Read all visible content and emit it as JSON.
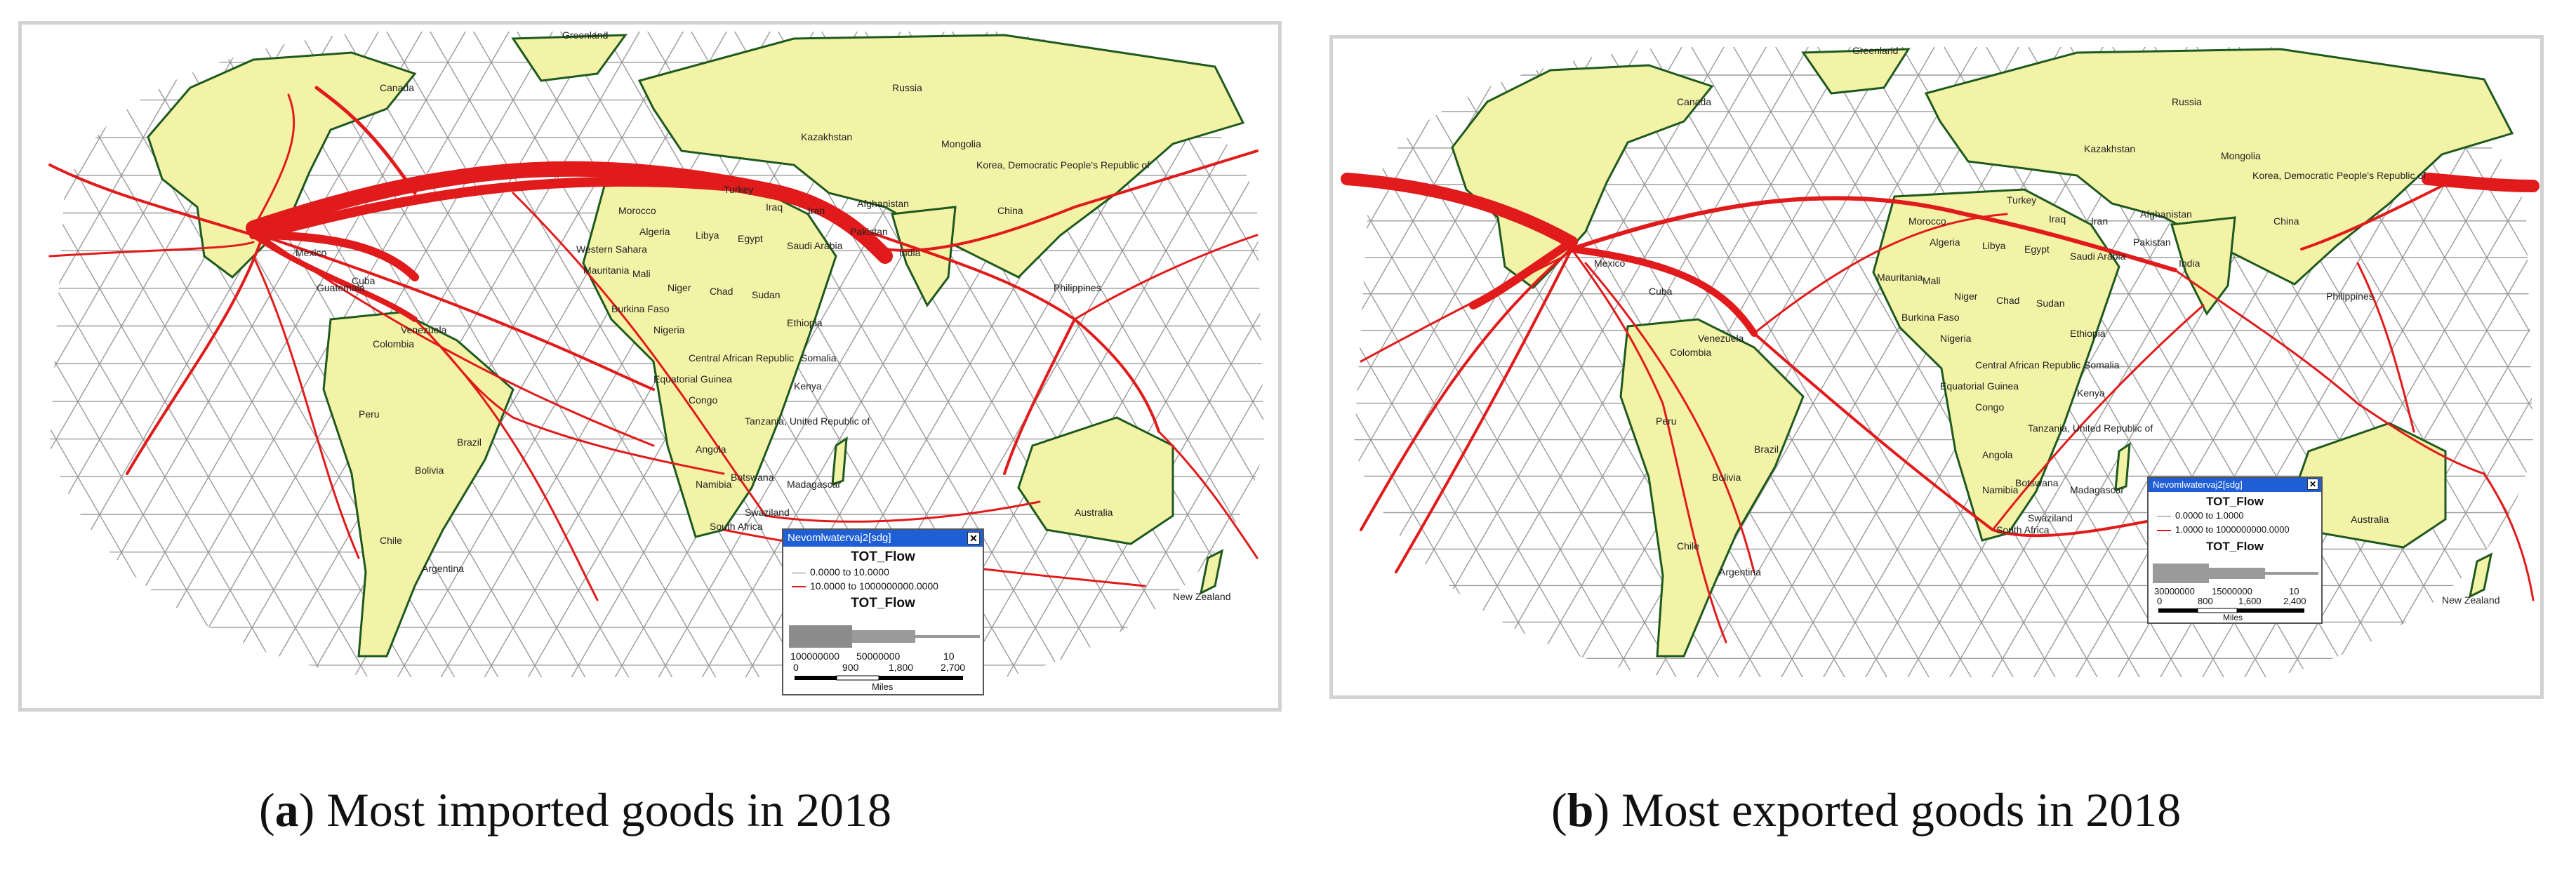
{
  "panels": [
    {
      "id": "a",
      "caption_letter": "a",
      "caption_text": ") Most imported goods in 2018",
      "legend": {
        "window_title": "Nevomlwatervaj2[sdg]",
        "close_symbol": "✕",
        "field": "TOT_Flow",
        "classes": [
          "0.0000 to 10.0000",
          "10.0000 to 1000000000.0000"
        ],
        "width_field": "TOT_Flow",
        "width_values": [
          "100000000",
          "50000000",
          "10"
        ],
        "scale_ticks": [
          "0",
          "900",
          "1,800",
          "2,700"
        ],
        "scale_unit": "Miles"
      },
      "labels": [
        "Greenland",
        "Canada",
        "Russia",
        "Kazakhstan",
        "Mongolia",
        "Korea, Democratic People's Republic of",
        "Afghanistan",
        "Iran",
        "Iraq",
        "Turkey",
        "Morocco",
        "Algeria",
        "Libya",
        "Egypt",
        "Saudi Arabia",
        "Western Sahara",
        "Mauritania",
        "Mali",
        "Niger",
        "Chad",
        "Sudan",
        "Burkina Faso",
        "Nigeria",
        "Ethiopia",
        "Central African Republic",
        "Equatorial Guinea",
        "Congo",
        "Somalia",
        "Tanzania, United Republic of",
        "Kenya",
        "Angola",
        "Namibia",
        "Botswana",
        "Madagascar",
        "South Africa",
        "Swaziland",
        "India",
        "China",
        "Pakistan",
        "Philippines",
        "Australia",
        "New Zealand",
        "Mexico",
        "Colombia",
        "Venezuela",
        "Brazil",
        "Bolivia",
        "Chile",
        "Argentina",
        "Peru",
        "Cuba",
        "Guatemala"
      ]
    },
    {
      "id": "b",
      "caption_letter": "b",
      "caption_text": ") Most exported goods in 2018",
      "legend": {
        "window_title": "Nevomlwatervaj2[sdg]",
        "close_symbol": "✕",
        "field": "TOT_Flow",
        "classes": [
          "0.0000 to 1.0000",
          "1.0000 to 1000000000.0000"
        ],
        "width_field": "TOT_Flow",
        "width_values": [
          "30000000",
          "15000000",
          "10"
        ],
        "scale_ticks": [
          "0",
          "800",
          "1,600",
          "2,400"
        ],
        "scale_unit": "Miles"
      },
      "labels": [
        "Greenland",
        "Canada",
        "Russia",
        "Kazakhstan",
        "Mongolia",
        "Korea, Democratic People's Republic of",
        "Afghanistan",
        "Iran",
        "Iraq",
        "Turkey",
        "Morocco",
        "Algeria",
        "Libya",
        "Egypt",
        "Saudi Arabia",
        "Mauritania",
        "Mali",
        "Niger",
        "Chad",
        "Sudan",
        "Burkina Faso",
        "Nigeria",
        "Ethiopia",
        "Central African Republic",
        "Equatorial Guinea",
        "Congo",
        "Somalia",
        "Tanzania, United Republic of",
        "Kenya",
        "Angola",
        "Namibia",
        "Botswana",
        "Madagascar",
        "South Africa",
        "Swaziland",
        "India",
        "China",
        "Pakistan",
        "Philippines",
        "Australia",
        "New Zealand",
        "Mexico",
        "Colombia",
        "Venezuela",
        "Brazil",
        "Bolivia",
        "Chile",
        "Argentina",
        "Peru",
        "Cuba"
      ]
    }
  ],
  "colors": {
    "land": "#f3f3a8",
    "coast": "#1e5a1e",
    "mesh": "#9a9a9a",
    "flow": "#e11b1b",
    "legend_title_bar": "#1f5fd6",
    "panel_border": "#d2d2d2"
  }
}
